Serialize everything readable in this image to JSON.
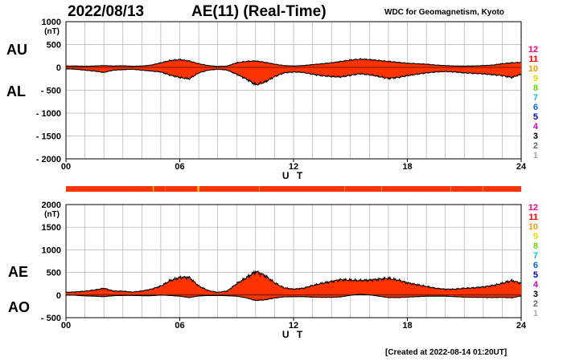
{
  "header": {
    "date": "2022/08/13",
    "title": "AE(11) (Real-Time)",
    "org": "WDC for Geomagnetism, Kyoto"
  },
  "footer": "[Created at 2022-08-14 01:20UT]",
  "colors": {
    "fill": "#ff3300",
    "line": "#000000",
    "grid": "#b0b0b0",
    "bar_warning": "#e5c400"
  },
  "station_levels": [
    {
      "label": "12",
      "color": "#ff0077"
    },
    {
      "label": "11",
      "color": "#ff0000"
    },
    {
      "label": "10",
      "color": "#ff9900"
    },
    {
      "label": "9",
      "color": "#dddd00"
    },
    {
      "label": "8",
      "color": "#66dd00"
    },
    {
      "label": "7",
      "color": "#00cccc"
    },
    {
      "label": "6",
      "color": "#0066ff"
    },
    {
      "label": "5",
      "color": "#0000cc"
    },
    {
      "label": "4",
      "color": "#cc00cc"
    },
    {
      "label": "3",
      "color": "#000000"
    },
    {
      "label": "2",
      "color": "#666666"
    },
    {
      "label": "1",
      "color": "#aaaaaa"
    }
  ],
  "chart_data": [
    {
      "type": "area",
      "series_labels": [
        "AU",
        "AL"
      ],
      "ylabel": "(nT)",
      "xlabel": "U T",
      "xlim": [
        0,
        24
      ],
      "ylim": [
        -2000,
        1000
      ],
      "yticks": [
        1000,
        500,
        0,
        -500,
        -1000,
        -1500,
        -2000
      ],
      "ytick_labels": [
        "1000",
        "500",
        "0",
        "- 500",
        "- 1000",
        "- 1500",
        "- 2000"
      ],
      "xticks": [
        "00",
        "06",
        "12",
        "18",
        "24"
      ],
      "grid": true,
      "x": [
        0,
        0.5,
        1,
        1.5,
        2,
        2.5,
        3,
        3.5,
        4,
        4.5,
        5,
        5.5,
        6,
        6.5,
        7,
        7.5,
        8,
        8.5,
        9,
        9.5,
        10,
        10.5,
        11,
        11.5,
        12,
        12.5,
        13,
        13.5,
        14,
        14.5,
        15,
        15.5,
        16,
        16.5,
        17,
        17.5,
        18,
        18.5,
        19,
        19.5,
        20,
        20.5,
        21,
        21.5,
        22,
        22.5,
        23,
        23.5,
        24
      ],
      "series": [
        {
          "name": "AU",
          "values": [
            30,
            30,
            25,
            30,
            40,
            30,
            35,
            25,
            30,
            50,
            100,
            150,
            170,
            140,
            80,
            40,
            20,
            30,
            100,
            130,
            140,
            110,
            70,
            40,
            30,
            40,
            60,
            80,
            100,
            130,
            160,
            180,
            170,
            150,
            130,
            110,
            90,
            80,
            70,
            50,
            40,
            30,
            30,
            30,
            40,
            50,
            80,
            100,
            110
          ]
        },
        {
          "name": "AL",
          "values": [
            -30,
            -40,
            -60,
            -80,
            -110,
            -60,
            -50,
            -40,
            -60,
            -80,
            -100,
            -170,
            -220,
            -250,
            -120,
            -60,
            -40,
            -60,
            -150,
            -250,
            -380,
            -320,
            -200,
            -120,
            -100,
            -110,
            -150,
            -180,
            -200,
            -210,
            -170,
            -140,
            -160,
            -200,
            -240,
            -220,
            -180,
            -150,
            -120,
            -100,
            -90,
            -100,
            -120,
            -130,
            -140,
            -160,
            -180,
            -220,
            -150
          ]
        }
      ]
    },
    {
      "type": "area",
      "series_labels": [
        "AE",
        "AO"
      ],
      "ylabel": "(nT)",
      "xlabel": "U T",
      "xlim": [
        0,
        24
      ],
      "ylim": [
        -500,
        2000
      ],
      "yticks": [
        2000,
        1500,
        1000,
        500,
        0,
        -500
      ],
      "ytick_labels": [
        "2000",
        "1500",
        "1000",
        "500",
        "0",
        "- 500"
      ],
      "xticks": [
        "00",
        "06",
        "12",
        "18",
        "24"
      ],
      "grid": true,
      "x": [
        0,
        0.5,
        1,
        1.5,
        2,
        2.5,
        3,
        3.5,
        4,
        4.5,
        5,
        5.5,
        6,
        6.5,
        7,
        7.5,
        8,
        8.5,
        9,
        9.5,
        10,
        10.5,
        11,
        11.5,
        12,
        12.5,
        13,
        13.5,
        14,
        14.5,
        15,
        15.5,
        16,
        16.5,
        17,
        17.5,
        18,
        18.5,
        19,
        19.5,
        20,
        20.5,
        21,
        21.5,
        22,
        22.5,
        23,
        23.5,
        24
      ],
      "series": [
        {
          "name": "AE",
          "values": [
            60,
            70,
            85,
            110,
            150,
            90,
            85,
            65,
            90,
            130,
            200,
            320,
            390,
            390,
            200,
            100,
            60,
            90,
            250,
            380,
            520,
            430,
            270,
            160,
            130,
            150,
            210,
            260,
            300,
            340,
            330,
            320,
            330,
            350,
            370,
            330,
            270,
            230,
            190,
            150,
            130,
            130,
            150,
            160,
            180,
            210,
            260,
            320,
            260
          ]
        },
        {
          "name": "AO",
          "values": [
            0,
            -5,
            -18,
            -25,
            -35,
            -15,
            -8,
            -8,
            -15,
            -15,
            0,
            -10,
            -25,
            -55,
            -20,
            -10,
            -10,
            -15,
            -25,
            -60,
            -120,
            -105,
            -65,
            -40,
            -35,
            -35,
            -45,
            -50,
            -50,
            -40,
            -5,
            20,
            5,
            -25,
            -55,
            -55,
            -45,
            -35,
            -25,
            -25,
            -25,
            -35,
            -45,
            -50,
            -50,
            -55,
            -50,
            -60,
            -20
          ]
        }
      ]
    }
  ]
}
